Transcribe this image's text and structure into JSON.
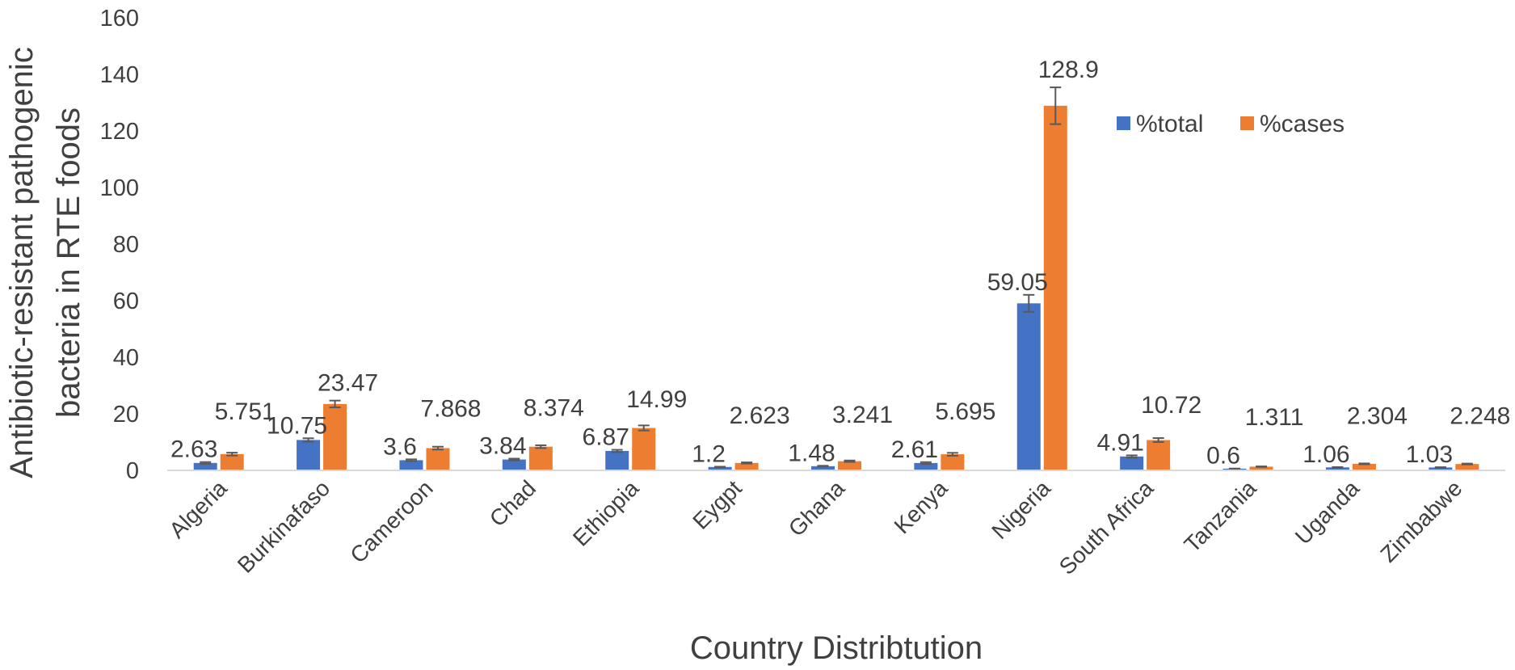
{
  "chart_data": {
    "type": "bar",
    "title": "",
    "xlabel": "Country Distribtution",
    "ylabel_lines": [
      "Antibiotic-resistant pathogenic",
      "bacteria in RTE foods"
    ],
    "ylim": [
      0,
      160
    ],
    "yticks": [
      0,
      20,
      40,
      60,
      80,
      100,
      120,
      140,
      160
    ],
    "grid": false,
    "legend_position": "top-right",
    "error_bars": true,
    "categories": [
      "Algeria",
      "Burkinafaso",
      "Cameroon",
      "Chad",
      "Ethiopia",
      "Eygpt",
      "Ghana",
      "Kenya",
      "Nigeria",
      "South Africa",
      "Tanzania",
      "Uganda",
      "Zimbabwe"
    ],
    "series": [
      {
        "name": "%total",
        "color": "#4472C4",
        "values": [
          2.63,
          10.75,
          3.6,
          3.84,
          6.87,
          1.2,
          1.48,
          2.61,
          59.05,
          4.91,
          0.6,
          1.06,
          1.03
        ],
        "labels": [
          "2.63",
          "10.75",
          "3.6",
          "3.84",
          "6.87",
          "1.2",
          "1.48",
          "2.61",
          "59.05",
          "4.91",
          "0.6",
          "1.06",
          "1.03"
        ],
        "errors": [
          0.3,
          0.6,
          0.3,
          0.3,
          0.4,
          0.1,
          0.15,
          0.3,
          3.0,
          0.4,
          0.05,
          0.1,
          0.1
        ]
      },
      {
        "name": "%cases",
        "color": "#ED7D31",
        "values": [
          5.751,
          23.47,
          7.868,
          8.374,
          14.99,
          2.623,
          3.241,
          5.695,
          128.9,
          10.72,
          1.311,
          2.304,
          2.248
        ],
        "labels": [
          "5.751",
          "23.47",
          "7.868",
          "8.374",
          "14.99",
          "2.623",
          "3.241",
          "5.695",
          "128.9",
          "10.72",
          "1.311",
          "2.304",
          "2.248"
        ],
        "errors": [
          0.5,
          1.2,
          0.5,
          0.5,
          0.9,
          0.2,
          0.25,
          0.5,
          6.5,
          0.7,
          0.1,
          0.15,
          0.15
        ]
      }
    ]
  }
}
